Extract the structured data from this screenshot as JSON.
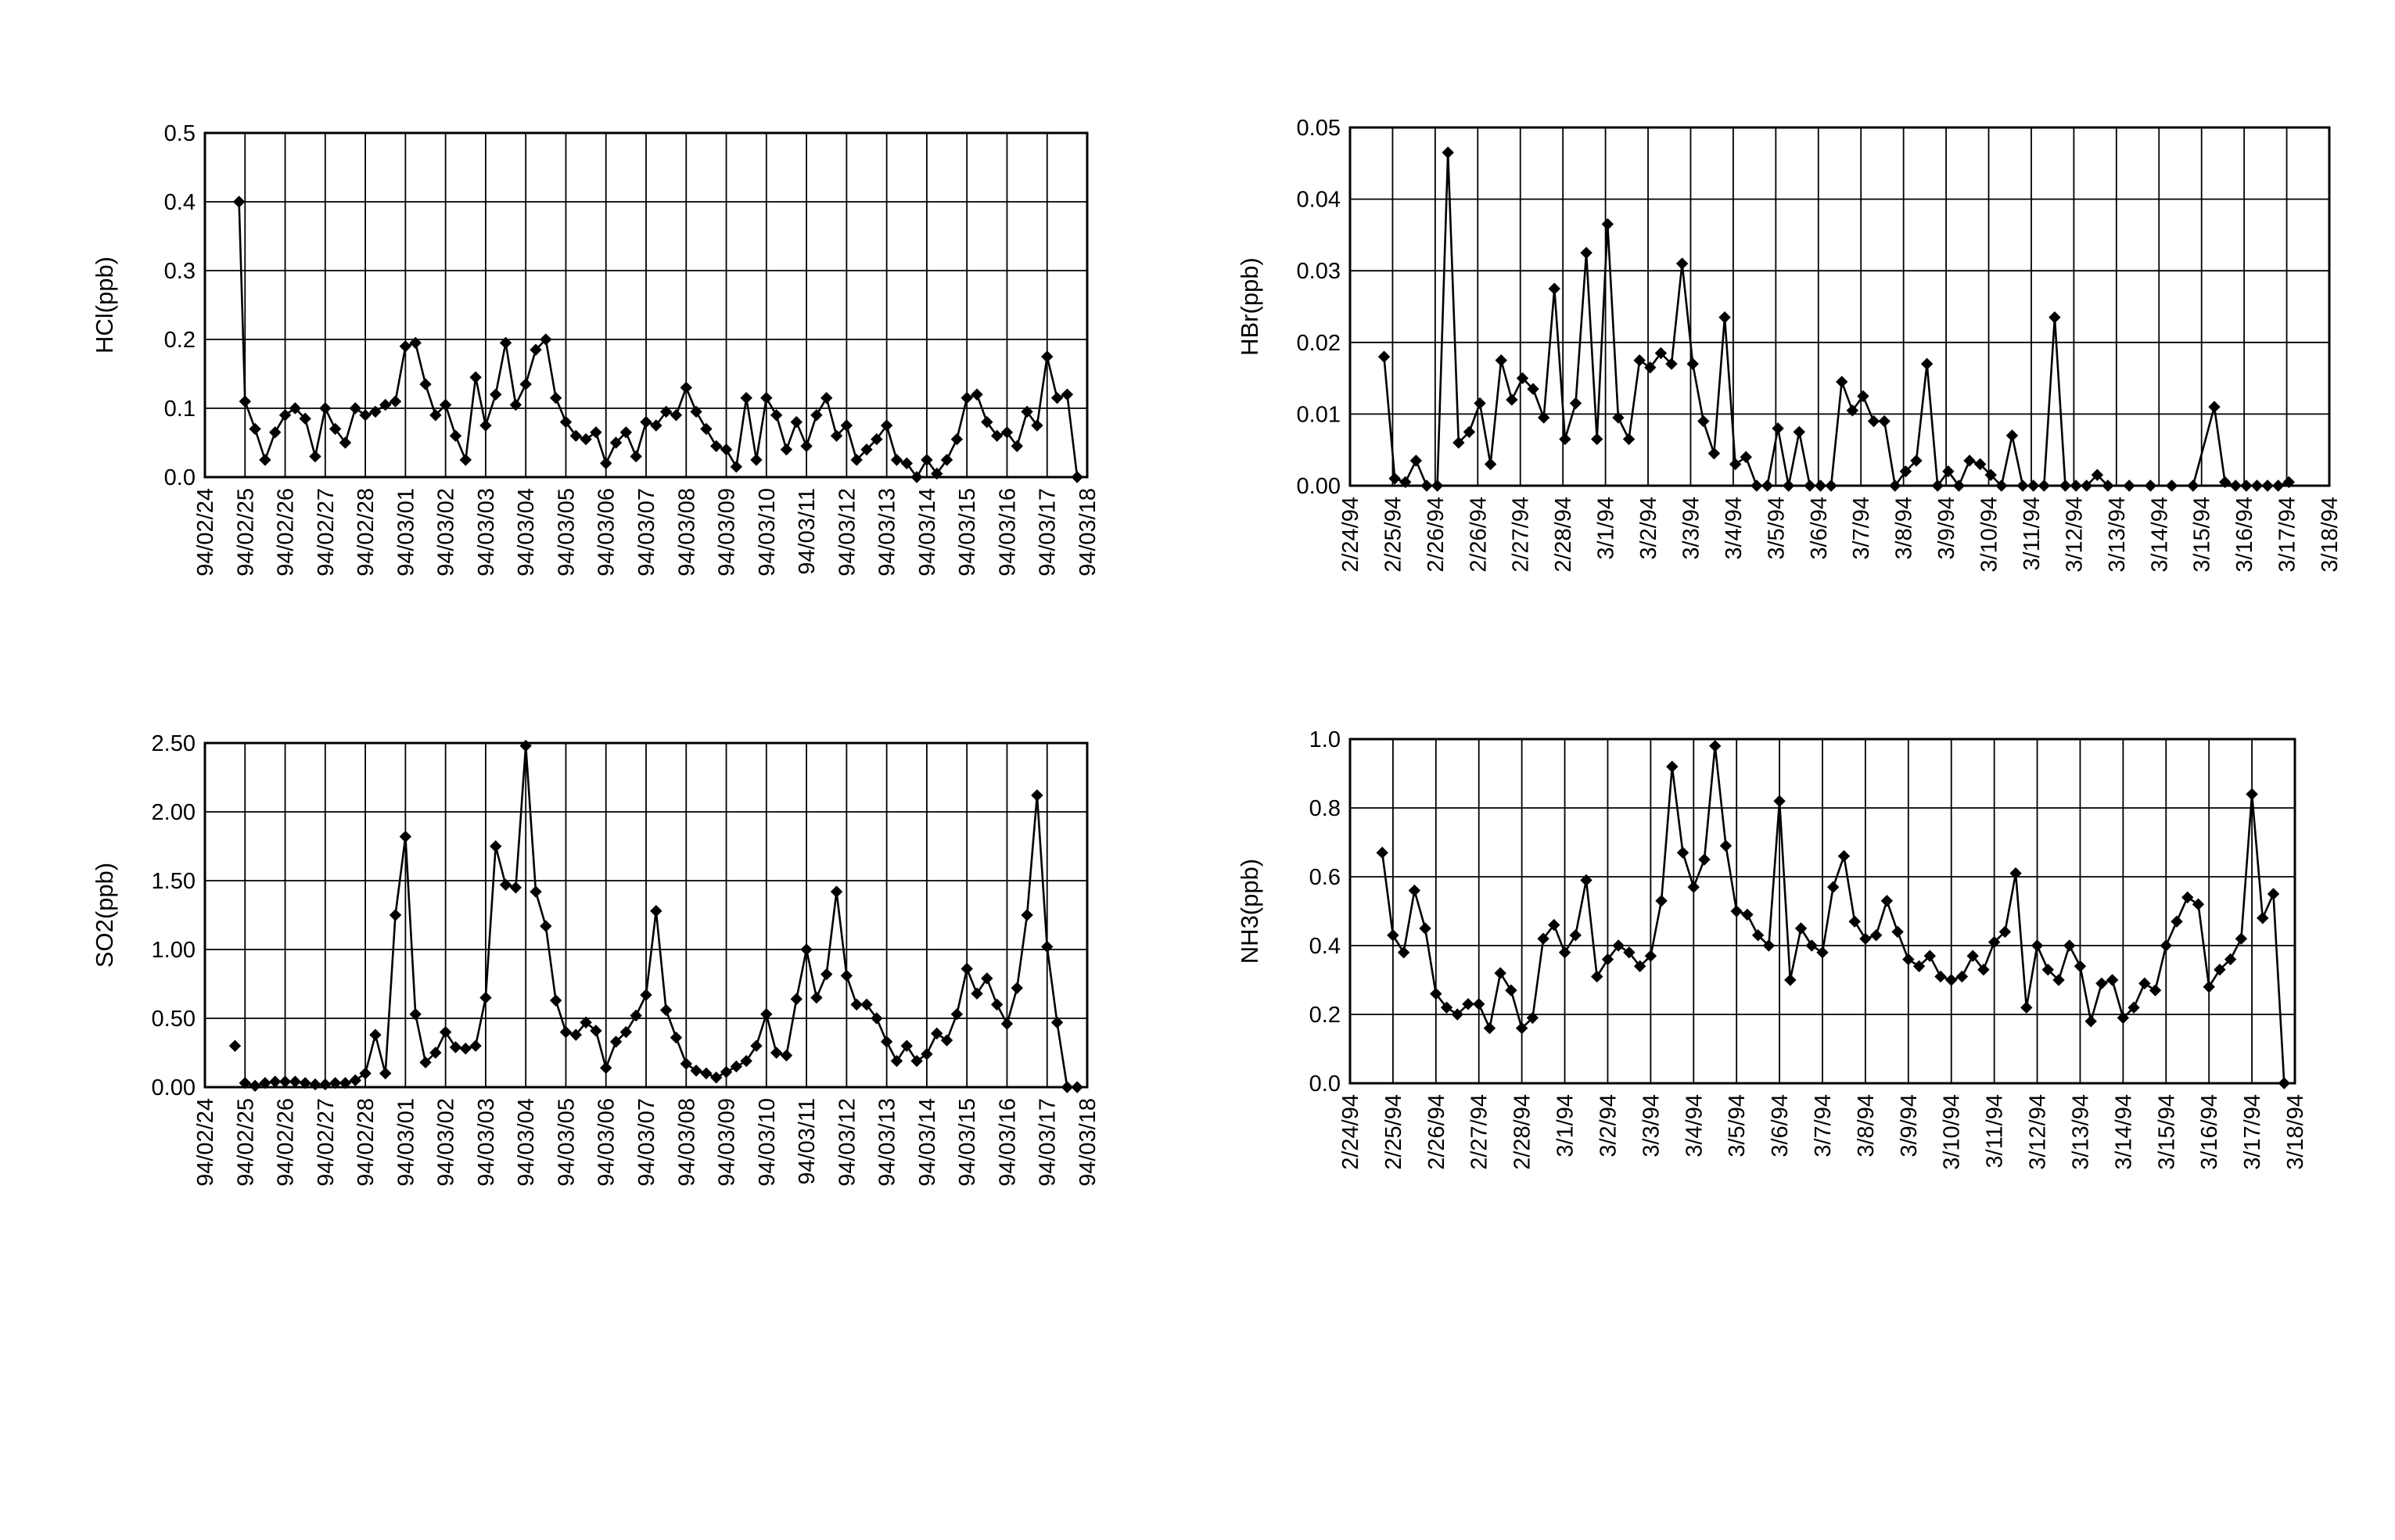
{
  "page": {
    "background": "#ffffff",
    "ink": "#000000"
  },
  "chart_data": [
    {
      "id": "hcl",
      "type": "line",
      "marker": "diamond",
      "title": "",
      "ylabel": "HCl(ppb)",
      "xlabel": "",
      "grid": true,
      "ylim": [
        0,
        0.5
      ],
      "yticks": [
        "0.0",
        "0.1",
        "0.2",
        "0.3",
        "0.4",
        "0.5"
      ],
      "xticks": [
        "94/02/24",
        "94/02/25",
        "94/02/26",
        "94/02/27",
        "94/02/28",
        "94/03/01",
        "94/03/02",
        "94/03/03",
        "94/03/04",
        "94/03/05",
        "94/03/06",
        "94/03/07",
        "94/03/08",
        "94/03/09",
        "94/03/10",
        "94/03/11",
        "94/03/12",
        "94/03/13",
        "94/03/14",
        "94/03/15",
        "94/03/16",
        "94/03/17",
        "94/03/18"
      ],
      "x_unit": "days from first tick",
      "series": [
        {
          "x": [
            0.85,
            1.0,
            1.25,
            1.5,
            1.75,
            2.0,
            2.25,
            2.5,
            2.75,
            3.0,
            3.25,
            3.5,
            3.75,
            4.0,
            4.25,
            4.5,
            4.75,
            5.0,
            5.25,
            5.5,
            5.75,
            6.0,
            6.25,
            6.5,
            6.75,
            7.0,
            7.25,
            7.5,
            7.75,
            8.0,
            8.25,
            8.5,
            8.75,
            9.0,
            9.25,
            9.5,
            9.75,
            10.0,
            10.25,
            10.5,
            10.75,
            11.0,
            11.25,
            11.5,
            11.75,
            12.0,
            12.25,
            12.5,
            12.75,
            13.0,
            13.25,
            13.5,
            13.75,
            14.0,
            14.25,
            14.5,
            14.75,
            15.0,
            15.25,
            15.5,
            15.75,
            16.0,
            16.25,
            16.5,
            16.75,
            17.0,
            17.25,
            17.5,
            17.75,
            18.0,
            18.25,
            18.5,
            18.75,
            19.0,
            19.25,
            19.5,
            19.75,
            20.0,
            20.25,
            20.5,
            20.75,
            21.0,
            21.25,
            21.5,
            21.75
          ],
          "y": [
            0.4,
            0.11,
            0.07,
            0.025,
            0.065,
            0.09,
            0.1,
            0.085,
            0.03,
            0.1,
            0.07,
            0.05,
            0.1,
            0.09,
            0.095,
            0.105,
            0.11,
            0.19,
            0.195,
            0.135,
            0.09,
            0.105,
            0.06,
            0.025,
            0.145,
            0.075,
            0.12,
            0.195,
            0.105,
            0.135,
            0.185,
            0.2,
            0.115,
            0.08,
            0.06,
            0.055,
            0.065,
            0.02,
            0.05,
            0.065,
            0.03,
            0.08,
            0.075,
            0.095,
            0.09,
            0.13,
            0.095,
            0.07,
            0.045,
            0.04,
            0.015,
            0.115,
            0.025,
            0.115,
            0.09,
            0.04,
            0.08,
            0.045,
            0.09,
            0.115,
            0.06,
            0.075,
            0.025,
            0.04,
            0.055,
            0.075,
            0.025,
            0.02,
            0.0,
            0.025,
            0.005,
            0.025,
            0.055,
            0.115,
            0.12,
            0.08,
            0.06,
            0.065,
            0.045,
            0.095,
            0.075,
            0.175,
            0.115,
            0.12,
            0.0
          ]
        }
      ]
    },
    {
      "id": "hbr",
      "type": "line",
      "marker": "diamond",
      "title": "",
      "ylabel": "HBr(ppb)",
      "xlabel": "",
      "grid": true,
      "ylim": [
        0,
        0.05
      ],
      "yticks": [
        "0.00",
        "0.01",
        "0.02",
        "0.03",
        "0.04",
        "0.05"
      ],
      "xticks": [
        "2/24/94",
        "2/25/94",
        "2/26/94",
        "2/26/94",
        "2/27/94",
        "2/28/94",
        "3/1/94",
        "3/2/94",
        "3/3/94",
        "3/4/94",
        "3/5/94",
        "3/6/94",
        "3/7/94",
        "3/8/94",
        "3/9/94",
        "3/10/94",
        "3/11/94",
        "3/12/94",
        "3/13/94",
        "3/14/94",
        "3/15/94",
        "3/16/94",
        "3/17/94",
        "3/18/94"
      ],
      "x_unit": "days from first tick",
      "series": [
        {
          "x": [
            0.8,
            1.05,
            1.3,
            1.55,
            1.8,
            2.05,
            2.3,
            2.55,
            2.8,
            3.05,
            3.3,
            3.55,
            3.8,
            4.05,
            4.3,
            4.55,
            4.8,
            5.05,
            5.3,
            5.55,
            5.8,
            6.05,
            6.3,
            6.55,
            6.8,
            7.05,
            7.3,
            7.55,
            7.8,
            8.05,
            8.3,
            8.55,
            8.8,
            9.05,
            9.3,
            9.55,
            9.8,
            10.05,
            10.3,
            10.55,
            10.8,
            11.05,
            11.3,
            11.55,
            11.8,
            12.05,
            12.3,
            12.55,
            12.8,
            13.05,
            13.3,
            13.55,
            13.8,
            14.05,
            14.3,
            14.55,
            14.8,
            15.05,
            15.3,
            15.55,
            15.8,
            16.05,
            16.3,
            16.55,
            16.8,
            17.05,
            17.3,
            17.55,
            17.8,
            18.3,
            18.8,
            19.3,
            19.8,
            20.3,
            20.55,
            20.8,
            21.05,
            21.3,
            21.55,
            21.8,
            22.05
          ],
          "y": [
            0.018,
            0.001,
            0.0005,
            0.0035,
            0.0,
            0.0,
            0.0465,
            0.006,
            0.0075,
            0.0115,
            0.003,
            0.0175,
            0.012,
            0.015,
            0.0135,
            0.0095,
            0.0275,
            0.0065,
            0.0115,
            0.0325,
            0.0065,
            0.0365,
            0.0095,
            0.0065,
            0.0175,
            0.0165,
            0.0185,
            0.017,
            0.031,
            0.017,
            0.009,
            0.0045,
            0.0235,
            0.003,
            0.004,
            0.0,
            0.0,
            0.008,
            0.0,
            0.0075,
            0.0,
            0.0,
            0.0,
            0.0145,
            0.0105,
            0.0125,
            0.009,
            0.009,
            0.0,
            0.002,
            0.0035,
            0.017,
            0.0,
            0.002,
            0.0,
            0.0035,
            0.003,
            0.0015,
            0.0,
            0.007,
            0.0,
            0.0,
            0.0,
            0.0235,
            0.0,
            0.0,
            0.0,
            0.0015,
            0.0,
            0.0,
            0.0,
            0.0,
            0.0,
            0.011,
            0.0005,
            0.0,
            0.0,
            0.0,
            0.0,
            0.0,
            0.0005
          ]
        }
      ]
    },
    {
      "id": "so2",
      "type": "line",
      "marker": "diamond",
      "title": "",
      "ylabel": "SO2(ppb)",
      "xlabel": "",
      "grid": true,
      "ylim": [
        0,
        2.5
      ],
      "yticks": [
        "0.00",
        "0.50",
        "1.00",
        "1.50",
        "2.00",
        "2.50"
      ],
      "xticks": [
        "94/02/24",
        "94/02/25",
        "94/02/26",
        "94/02/27",
        "94/02/28",
        "94/03/01",
        "94/03/02",
        "94/03/03",
        "94/03/04",
        "94/03/05",
        "94/03/06",
        "94/03/07",
        "94/03/08",
        "94/03/09",
        "94/03/10",
        "94/03/11",
        "94/03/12",
        "94/03/13",
        "94/03/14",
        "94/03/15",
        "94/03/16",
        "94/03/17",
        "94/03/18"
      ],
      "x_unit": "days from first tick",
      "isolated_point": {
        "x": 0.75,
        "y": 0.3
      },
      "series": [
        {
          "x": [
            1.0,
            1.25,
            1.5,
            1.75,
            2.0,
            2.25,
            2.5,
            2.75,
            3.0,
            3.25,
            3.5,
            3.75,
            4.0,
            4.25,
            4.5,
            4.75,
            5.0,
            5.25,
            5.5,
            5.75,
            6.0,
            6.25,
            6.5,
            6.75,
            7.0,
            7.25,
            7.5,
            7.75,
            8.0,
            8.25,
            8.5,
            8.75,
            9.0,
            9.25,
            9.5,
            9.75,
            10.0,
            10.25,
            10.5,
            10.75,
            11.0,
            11.25,
            11.5,
            11.75,
            12.0,
            12.25,
            12.5,
            12.75,
            13.0,
            13.25,
            13.5,
            13.75,
            14.0,
            14.25,
            14.5,
            14.75,
            15.0,
            15.25,
            15.5,
            15.75,
            16.0,
            16.25,
            16.5,
            16.75,
            17.0,
            17.25,
            17.5,
            17.75,
            18.0,
            18.25,
            18.5,
            18.75,
            19.0,
            19.25,
            19.5,
            19.75,
            20.0,
            20.25,
            20.5,
            20.75,
            21.0,
            21.25,
            21.5,
            21.75
          ],
          "y": [
            0.03,
            0.01,
            0.03,
            0.04,
            0.04,
            0.04,
            0.03,
            0.02,
            0.02,
            0.03,
            0.03,
            0.05,
            0.1,
            0.38,
            0.1,
            1.25,
            1.82,
            0.53,
            0.18,
            0.25,
            0.4,
            0.29,
            0.28,
            0.3,
            0.65,
            1.75,
            1.47,
            1.45,
            2.48,
            1.42,
            1.17,
            0.63,
            0.4,
            0.38,
            0.47,
            0.41,
            0.14,
            0.33,
            0.4,
            0.52,
            0.67,
            1.28,
            0.56,
            0.36,
            0.17,
            0.12,
            0.1,
            0.07,
            0.11,
            0.15,
            0.19,
            0.3,
            0.53,
            0.25,
            0.23,
            0.64,
            1.0,
            0.65,
            0.82,
            1.42,
            0.81,
            0.6,
            0.6,
            0.5,
            0.33,
            0.19,
            0.3,
            0.19,
            0.24,
            0.39,
            0.34,
            0.53,
            0.86,
            0.68,
            0.79,
            0.6,
            0.46,
            0.72,
            1.25,
            2.12,
            1.02,
            0.47,
            0.0,
            0.0
          ]
        }
      ]
    },
    {
      "id": "nh3",
      "type": "line",
      "marker": "diamond",
      "title": "",
      "ylabel": "NH3(ppb)",
      "xlabel": "",
      "grid": true,
      "ylim": [
        0,
        1.0
      ],
      "yticks": [
        "0.0",
        "0.2",
        "0.4",
        "0.6",
        "0.8",
        "1.0"
      ],
      "xticks": [
        "2/24/94",
        "2/25/94",
        "2/26/94",
        "2/27/94",
        "2/28/94",
        "3/1/94",
        "3/2/94",
        "3/3/94",
        "3/4/94",
        "3/5/94",
        "3/6/94",
        "3/7/94",
        "3/8/94",
        "3/9/94",
        "3/10/94",
        "3/11/94",
        "3/12/94",
        "3/13/94",
        "3/14/94",
        "3/15/94",
        "3/16/94",
        "3/17/94",
        "3/18/94"
      ],
      "x_unit": "days from first tick",
      "series": [
        {
          "x": [
            0.75,
            1.0,
            1.25,
            1.5,
            1.75,
            2.0,
            2.25,
            2.5,
            2.75,
            3.0,
            3.25,
            3.5,
            3.75,
            4.0,
            4.25,
            4.5,
            4.75,
            5.0,
            5.25,
            5.5,
            5.75,
            6.0,
            6.25,
            6.5,
            6.75,
            7.0,
            7.25,
            7.5,
            7.75,
            8.0,
            8.25,
            8.5,
            8.75,
            9.0,
            9.25,
            9.5,
            9.75,
            10.0,
            10.25,
            10.5,
            10.75,
            11.0,
            11.25,
            11.5,
            11.75,
            12.0,
            12.25,
            12.5,
            12.75,
            13.0,
            13.25,
            13.5,
            13.75,
            14.0,
            14.25,
            14.5,
            14.75,
            15.0,
            15.25,
            15.5,
            15.75,
            16.0,
            16.25,
            16.5,
            16.75,
            17.0,
            17.25,
            17.5,
            17.75,
            18.0,
            18.25,
            18.5,
            18.75,
            19.0,
            19.25,
            19.5,
            19.75,
            20.0,
            20.25,
            20.5,
            20.75,
            21.0,
            21.25,
            21.5,
            21.75
          ],
          "y": [
            0.67,
            0.43,
            0.38,
            0.56,
            0.45,
            0.26,
            0.22,
            0.2,
            0.23,
            0.23,
            0.16,
            0.32,
            0.27,
            0.16,
            0.19,
            0.42,
            0.46,
            0.38,
            0.43,
            0.59,
            0.31,
            0.36,
            0.4,
            0.38,
            0.34,
            0.37,
            0.53,
            0.92,
            0.67,
            0.57,
            0.65,
            0.98,
            0.69,
            0.5,
            0.49,
            0.43,
            0.4,
            0.82,
            0.3,
            0.45,
            0.4,
            0.38,
            0.57,
            0.66,
            0.47,
            0.42,
            0.43,
            0.53,
            0.44,
            0.36,
            0.34,
            0.37,
            0.31,
            0.3,
            0.31,
            0.37,
            0.33,
            0.41,
            0.44,
            0.61,
            0.22,
            0.4,
            0.33,
            0.3,
            0.4,
            0.34,
            0.18,
            0.29,
            0.3,
            0.19,
            0.22,
            0.29,
            0.27,
            0.4,
            0.47,
            0.54,
            0.52,
            0.28,
            0.33,
            0.36,
            0.42,
            0.84,
            0.48,
            0.55,
            0.0
          ]
        }
      ]
    }
  ]
}
